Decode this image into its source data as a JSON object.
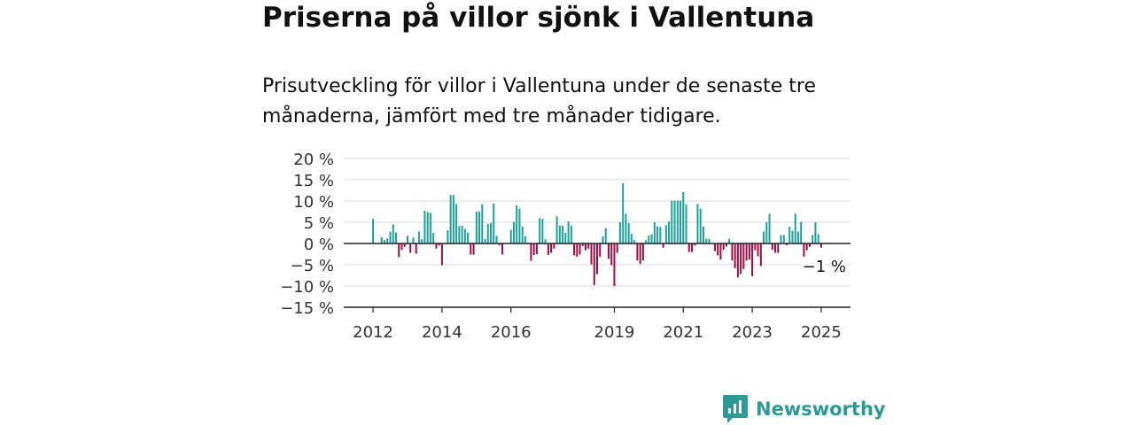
{
  "title": "Priserna på villor sjönk i Vallentuna",
  "subtitle": "Prisutveckling för villor i Vallentuna under de senaste tre månaderna, jämfört med tre månader tidigare.",
  "brand": {
    "name": "Newsworthy",
    "icon": "newsworthy-logo-icon",
    "color": "#2c9a95"
  },
  "colors": {
    "positive": "#1aa39a",
    "negative": "#a30b45",
    "grid": "#d9d9d9",
    "axis": "#222222"
  },
  "chart_data": {
    "type": "bar",
    "title": "",
    "xlabel": "",
    "ylabel": "",
    "ylim": [
      -15,
      20
    ],
    "yticks": [
      20,
      15,
      10,
      5,
      0,
      -5,
      -10,
      -15
    ],
    "ytick_labels": [
      "20 %",
      "15 %",
      "10 %",
      "5 %",
      "0 %",
      "−5 %",
      "−10 %",
      "−15 %"
    ],
    "xticks": [
      "2012",
      "2014",
      "2016",
      "2019",
      "2021",
      "2023",
      "2025"
    ],
    "xtick_positions": [
      2012.0,
      2014.0,
      2016.0,
      2019.0,
      2021.0,
      2023.0,
      2025.0
    ],
    "x_start": 2012.0,
    "x_step": 0.08333,
    "end_label": "−1 %",
    "grid": true,
    "values": [
      5.8,
      0,
      0,
      1.5,
      0.8,
      1.2,
      2.8,
      4.5,
      2.6,
      -3.2,
      -1.5,
      -0.8,
      1.8,
      -2.2,
      1.4,
      -2.4,
      2.8,
      1.0,
      7.7,
      7.4,
      7.2,
      2.5,
      -1.2,
      -0.5,
      -5.1,
      0,
      3.1,
      11.4,
      11.4,
      9.3,
      4.1,
      4.2,
      3.4,
      2.6,
      -2.6,
      -2.6,
      7.5,
      7.5,
      9.2,
      1.1,
      4.6,
      4.8,
      9.4,
      1.8,
      -0.4,
      -2.6,
      0,
      0,
      3.2,
      5.1,
      9.0,
      8.2,
      4.0,
      1.7,
      -0.2,
      -4.1,
      -2.7,
      -2.5,
      6.0,
      5.8,
      1.0,
      -2.7,
      -2.2,
      -1.2,
      6.4,
      4.2,
      4.2,
      2.5,
      5.2,
      4.2,
      -2.8,
      -3.1,
      -2.6,
      -0.6,
      -1.6,
      -1.2,
      -4.9,
      -9.8,
      -7.2,
      -3.1,
      1.7,
      3.6,
      -3.6,
      -5.1,
      -10.0,
      -2.2,
      5.0,
      14.2,
      7.0,
      4.8,
      2.3,
      0.8,
      -4.0,
      -4.8,
      -4.0,
      0.8,
      1.9,
      2.2,
      5.0,
      4.0,
      3.9,
      -1.0,
      4.3,
      5.2,
      10.1,
      10.1,
      10.1,
      10.1,
      12.1,
      9.2,
      -2.0,
      -2.0,
      -0.5,
      9.3,
      8.2,
      4.0,
      1.1,
      1.1,
      0,
      -1.8,
      -2.8,
      -3.8,
      -1.5,
      -0.7,
      1.1,
      -4.0,
      -5.8,
      -8.0,
      -7.2,
      -6.0,
      -4.0,
      -3.8,
      -7.7,
      -1.6,
      -3.0,
      -5.3,
      2.8,
      5.0,
      7.0,
      -1.5,
      -2.2,
      -2.2,
      2.0,
      2.0,
      -0.4,
      4.0,
      3.0,
      7.0,
      2.8,
      5.1,
      -3.1,
      -1.6,
      -0.8,
      2.0,
      5.0,
      2.2,
      -1.0
    ]
  }
}
